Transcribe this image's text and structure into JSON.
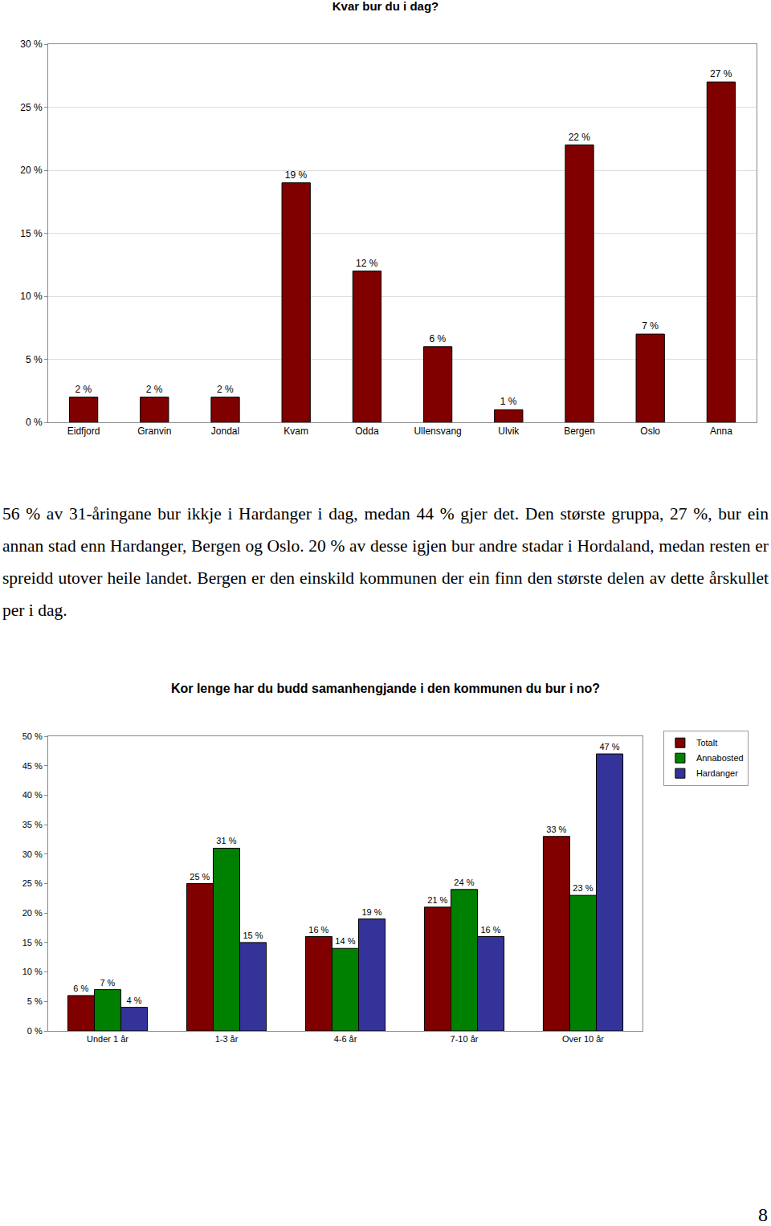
{
  "chart_data": [
    {
      "type": "bar",
      "title": "Kvar bur du i dag?",
      "categories": [
        "Eidfjord",
        "Granvin",
        "Jondal",
        "Kvam",
        "Odda",
        "Ullensvang",
        "Ulvik",
        "Bergen",
        "Oslo",
        "Anna"
      ],
      "values": [
        2,
        2,
        2,
        19,
        12,
        6,
        1,
        22,
        7,
        27
      ],
      "value_labels": [
        "2 %",
        "2 %",
        "2 %",
        "19 %",
        "12 %",
        "6 %",
        "1 %",
        "22 %",
        "7 %",
        "27 %"
      ],
      "color": "#800000",
      "ylim": [
        0,
        30
      ],
      "yticks": [
        {
          "value": 0,
          "label": "0 %"
        },
        {
          "value": 5,
          "label": "5 %"
        },
        {
          "value": 10,
          "label": "10 %"
        },
        {
          "value": 15,
          "label": "15 %"
        },
        {
          "value": 20,
          "label": "20 %"
        },
        {
          "value": 25,
          "label": "25 %"
        },
        {
          "value": 30,
          "label": "30 %"
        }
      ],
      "grid": true,
      "data_labels": true
    },
    {
      "type": "bar",
      "title": "Kor lenge har du budd samanhengjande i den kommunen du bur i no?",
      "categories": [
        "Under 1 år",
        "1-3 år",
        "4-6 år",
        "7-10 år",
        "Over 10 år"
      ],
      "series": [
        {
          "name": "Totalt",
          "color": "#800000",
          "values": [
            6,
            25,
            16,
            21,
            33
          ],
          "value_labels": [
            "6 %",
            "25 %",
            "16 %",
            "21 %",
            "33 %"
          ]
        },
        {
          "name": "Annabosted",
          "color": "#008000",
          "values": [
            7,
            31,
            14,
            24,
            23
          ],
          "value_labels": [
            "7 %",
            "31 %",
            "14 %",
            "24 %",
            "23 %"
          ]
        },
        {
          "name": "Hardanger",
          "color": "#333399",
          "values": [
            4,
            15,
            19,
            16,
            47
          ],
          "value_labels": [
            "4 %",
            "15 %",
            "19 %",
            "16 %",
            "47 %"
          ]
        }
      ],
      "ylim": [
        0,
        50
      ],
      "yticks": [
        {
          "value": 0,
          "label": "0 %"
        },
        {
          "value": 5,
          "label": "5 %"
        },
        {
          "value": 10,
          "label": "10 %"
        },
        {
          "value": 15,
          "label": "15 %"
        },
        {
          "value": 20,
          "label": "20 %"
        },
        {
          "value": 25,
          "label": "25 %"
        },
        {
          "value": 30,
          "label": "30 %"
        },
        {
          "value": 35,
          "label": "35 %"
        },
        {
          "value": 40,
          "label": "40 %"
        },
        {
          "value": 45,
          "label": "45 %"
        },
        {
          "value": 50,
          "label": "50 %"
        }
      ],
      "grid": false,
      "data_labels": true,
      "legend": "top-right"
    }
  ],
  "paragraphs": [
    "56 % av 31-åringane bur ikkje i Hardanger i dag, medan 44 % gjer det. Den største gruppa, 27 %, bur ein annan stad enn Hardanger, Bergen og Oslo. 20 % av desse igjen bur andre stadar i Hordaland, medan resten er spreidd utover heile landet. Bergen er den einskild kommunen der ein finn den største delen av dette årskullet per i dag."
  ],
  "page_number": "8"
}
